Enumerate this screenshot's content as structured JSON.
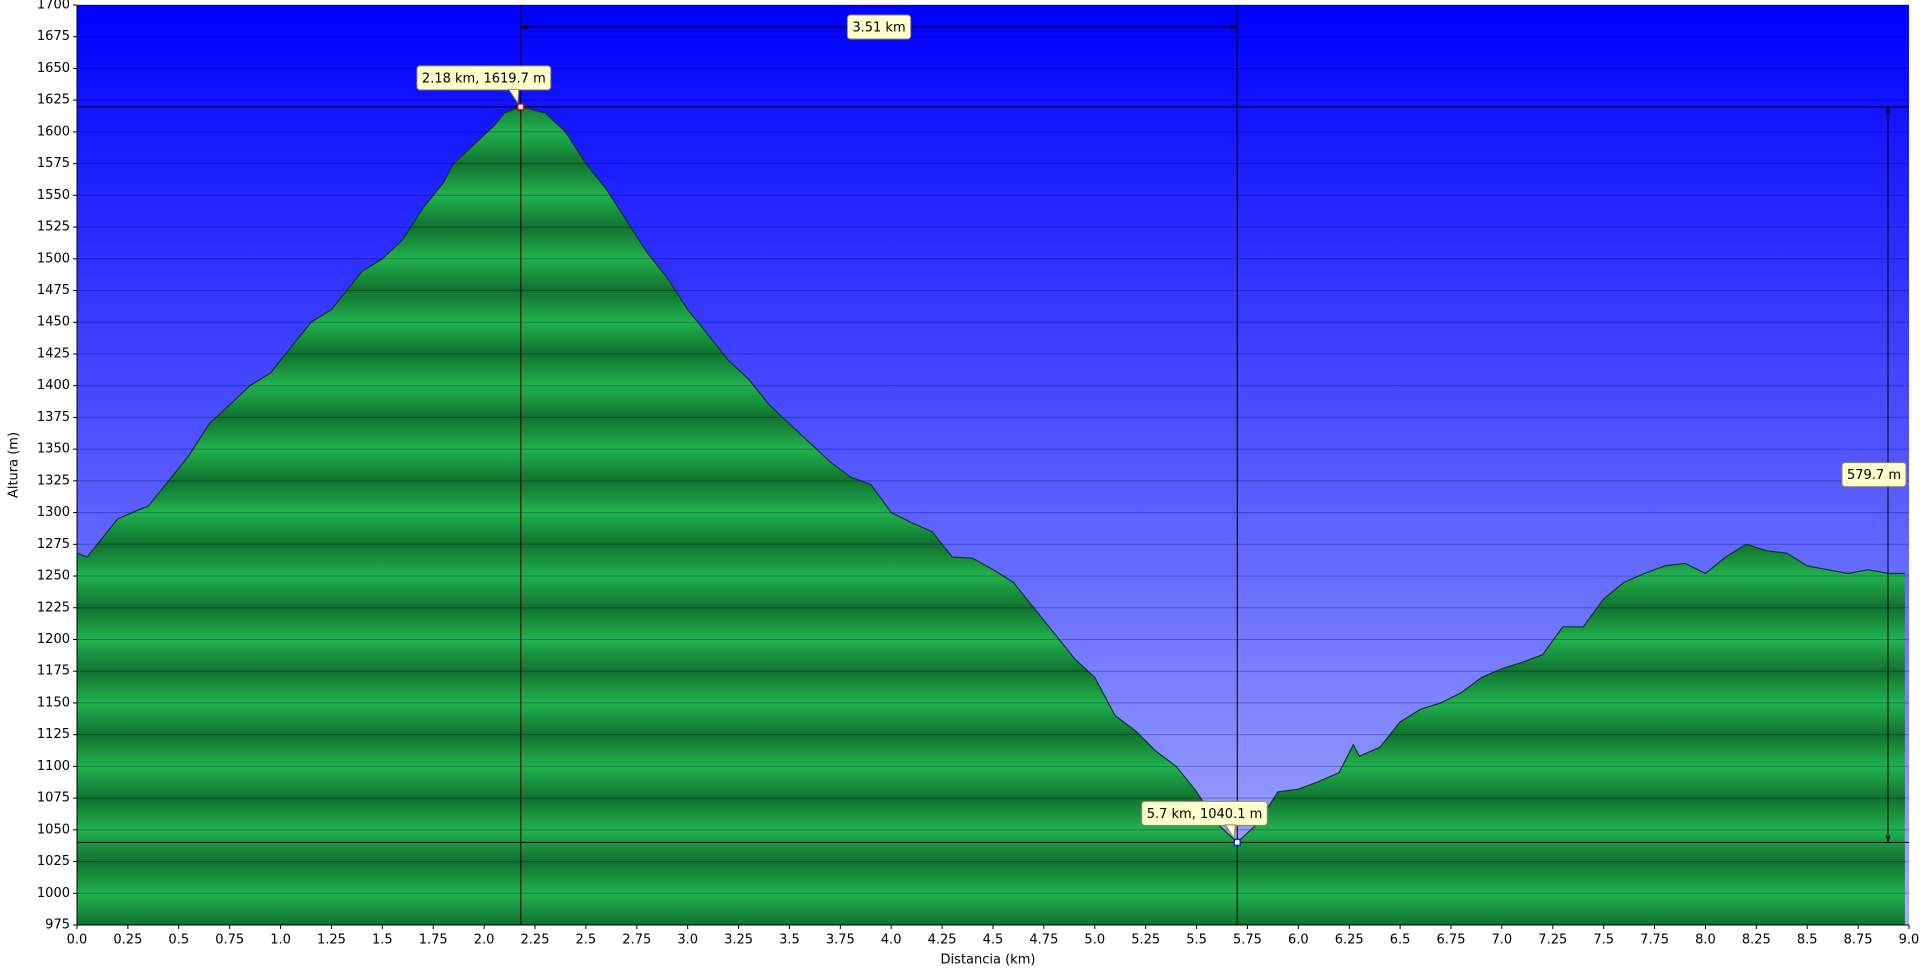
{
  "chart_data": {
    "type": "area",
    "x_label": "Distancia  (km)",
    "y_label": "Altura (m)",
    "x": [
      0.0,
      0.05,
      0.1,
      0.2,
      0.3,
      0.35,
      0.45,
      0.55,
      0.65,
      0.75,
      0.85,
      0.95,
      1.05,
      1.15,
      1.25,
      1.35,
      1.4,
      1.5,
      1.6,
      1.7,
      1.8,
      1.85,
      1.95,
      2.05,
      2.1,
      2.18,
      2.3,
      2.4,
      2.5,
      2.6,
      2.7,
      2.8,
      2.9,
      3.0,
      3.1,
      3.2,
      3.3,
      3.4,
      3.5,
      3.6,
      3.7,
      3.8,
      3.9,
      4.0,
      4.1,
      4.2,
      4.3,
      4.4,
      4.5,
      4.6,
      4.7,
      4.8,
      4.9,
      5.0,
      5.1,
      5.2,
      5.3,
      5.4,
      5.5,
      5.6,
      5.7,
      5.8,
      5.9,
      6.0,
      6.1,
      6.2,
      6.27,
      6.3,
      6.4,
      6.5,
      6.6,
      6.7,
      6.8,
      6.9,
      7.0,
      7.1,
      7.2,
      7.3,
      7.4,
      7.5,
      7.6,
      7.7,
      7.8,
      7.9,
      8.0,
      8.1,
      8.2,
      8.3,
      8.4,
      8.5,
      8.6,
      8.7,
      8.8,
      8.9,
      8.98
    ],
    "values": [
      1268,
      1265,
      1275,
      1295,
      1302,
      1305,
      1325,
      1345,
      1370,
      1385,
      1400,
      1410,
      1430,
      1450,
      1460,
      1480,
      1490,
      1500,
      1515,
      1540,
      1560,
      1575,
      1590,
      1605,
      1615,
      1619.7,
      1615,
      1600,
      1575,
      1555,
      1530,
      1505,
      1485,
      1460,
      1440,
      1420,
      1405,
      1385,
      1370,
      1355,
      1340,
      1328,
      1322,
      1300,
      1292,
      1285,
      1265,
      1264,
      1255,
      1245,
      1225,
      1205,
      1185,
      1170,
      1140,
      1128,
      1112,
      1100,
      1080,
      1055,
      1040.1,
      1055,
      1080,
      1082,
      1088,
      1095,
      1117,
      1108,
      1115,
      1135,
      1145,
      1150,
      1158,
      1170,
      1177,
      1182,
      1188,
      1210,
      1210,
      1232,
      1245,
      1252,
      1258,
      1260,
      1252,
      1265,
      1275,
      1270,
      1268,
      1258,
      1255,
      1252,
      1255,
      1252,
      1252
    ],
    "xlim": [
      0,
      9
    ],
    "ylim": [
      975,
      1700
    ],
    "xticks": [
      {
        "value": 0,
        "label": "0.0"
      },
      0.25,
      0.5,
      0.75,
      {
        "value": 1,
        "label": "1.0"
      },
      1.25,
      1.5,
      1.75,
      {
        "value": 2,
        "label": "2.0"
      },
      2.25,
      2.5,
      2.75,
      {
        "value": 3,
        "label": "3.0"
      },
      3.25,
      3.5,
      3.75,
      {
        "value": 4,
        "label": "4.0"
      },
      4.25,
      4.5,
      4.75,
      {
        "value": 5,
        "label": "5.0"
      },
      5.25,
      5.5,
      5.75,
      {
        "value": 6,
        "label": "6.0"
      },
      6.25,
      6.5,
      6.75,
      {
        "value": 7,
        "label": "7.0"
      },
      7.25,
      7.5,
      7.75,
      {
        "value": 8,
        "label": "8.0"
      },
      8.25,
      8.5,
      8.75,
      {
        "value": 9,
        "label": "9.0"
      }
    ],
    "yticks": [
      975,
      1000,
      1025,
      1050,
      1075,
      1100,
      1125,
      1150,
      1175,
      1200,
      1225,
      1250,
      1275,
      1300,
      1325,
      1350,
      1375,
      1400,
      1425,
      1450,
      1475,
      1500,
      1525,
      1550,
      1575,
      1600,
      1625,
      1650,
      1675,
      1700
    ],
    "grid": true,
    "markers": [
      {
        "x": 2.18,
        "y": 1619.7,
        "label": "2.18 km, 1619.7 m",
        "color": "#cc0000"
      },
      {
        "x": 5.7,
        "y": 1040.1,
        "label": "5.7 km, 1040.1 m",
        "color": "#0033cc"
      }
    ],
    "distance_label": "3.51 km",
    "height_label": "579.7 m"
  }
}
